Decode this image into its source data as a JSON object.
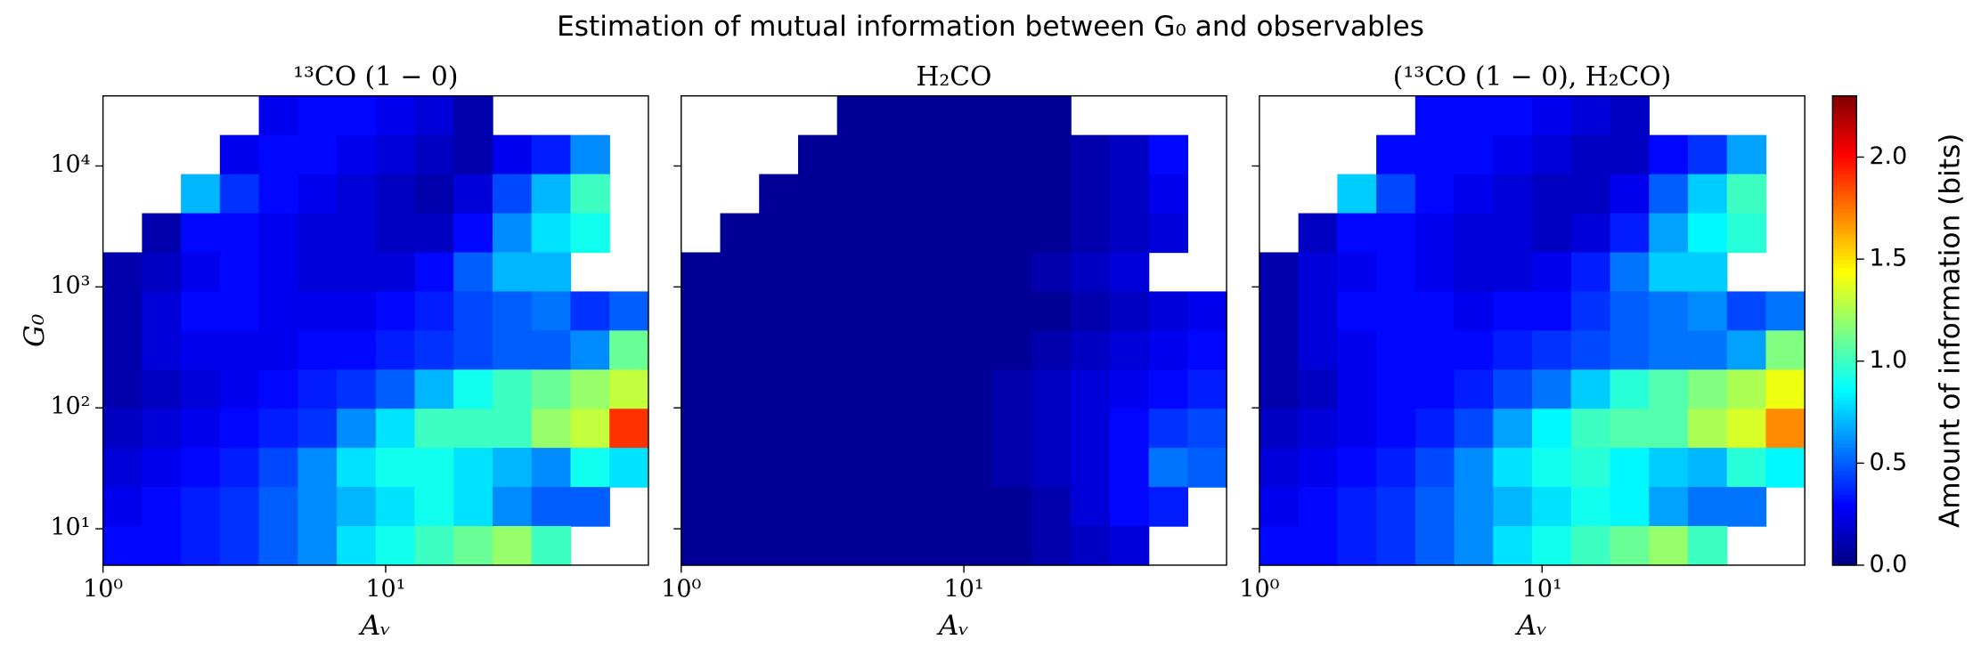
{
  "title": "Estimation of mutual information between G₀ and observables",
  "colorbar": {
    "label": "Amount of information (bits)",
    "colormap": "jet",
    "clim": [
      0,
      2.3
    ],
    "ticks": [
      {
        "value": 0,
        "label": "0.0"
      },
      {
        "value": 0.5,
        "label": "0.5"
      },
      {
        "value": 1,
        "label": "1.0"
      },
      {
        "value": 1.5,
        "label": "1.5"
      },
      {
        "value": 2,
        "label": "2.0"
      }
    ]
  },
  "chart_data": [
    {
      "type": "heatmap",
      "title": "¹³CO (1 − 0)",
      "xlabel": "Aᵥ",
      "ylabel": "G₀",
      "log_x": true,
      "log_y": true,
      "xlim": [
        1,
        85
      ],
      "ylim": [
        5,
        38000
      ],
      "xticks": [
        {
          "value": 1,
          "label": "10⁰"
        },
        {
          "value": 10,
          "label": "10¹"
        }
      ],
      "yticks": [
        {
          "value": 10,
          "label": "10¹"
        },
        {
          "value": 100,
          "label": "10²"
        },
        {
          "value": 1000,
          "label": "10³"
        },
        {
          "value": 10000,
          "label": "10⁴"
        }
      ],
      "values": [
        [
          null,
          null,
          null,
          null,
          0.25,
          0.3,
          0.3,
          0.25,
          0.2,
          0.1,
          null,
          null,
          null,
          null
        ],
        [
          null,
          null,
          null,
          0.25,
          0.3,
          0.3,
          0.25,
          0.2,
          0.15,
          0.1,
          0.25,
          0.35,
          0.6,
          null
        ],
        [
          null,
          null,
          0.7,
          0.4,
          0.3,
          0.25,
          0.2,
          0.15,
          0.1,
          0.2,
          0.45,
          0.7,
          1.0,
          null
        ],
        [
          null,
          0.1,
          0.3,
          0.3,
          0.25,
          0.2,
          0.2,
          0.15,
          0.15,
          0.3,
          0.6,
          0.8,
          0.9,
          null
        ],
        [
          0.1,
          0.15,
          0.25,
          0.3,
          0.25,
          0.2,
          0.2,
          0.2,
          0.3,
          0.5,
          0.7,
          0.7,
          null,
          null
        ],
        [
          0.1,
          0.2,
          0.3,
          0.3,
          0.25,
          0.25,
          0.25,
          0.3,
          0.35,
          0.45,
          0.5,
          0.55,
          0.4,
          0.5
        ],
        [
          0.1,
          0.2,
          0.25,
          0.25,
          0.25,
          0.3,
          0.3,
          0.35,
          0.4,
          0.45,
          0.5,
          0.5,
          0.6,
          1.1
        ],
        [
          0.1,
          0.15,
          0.2,
          0.25,
          0.3,
          0.35,
          0.4,
          0.5,
          0.7,
          0.9,
          1.0,
          1.1,
          1.2,
          1.3
        ],
        [
          0.15,
          0.2,
          0.25,
          0.3,
          0.35,
          0.4,
          0.6,
          0.8,
          1.0,
          1.0,
          1.0,
          1.2,
          1.3,
          1.9
        ],
        [
          0.2,
          0.25,
          0.3,
          0.35,
          0.45,
          0.6,
          0.8,
          0.9,
          0.9,
          0.8,
          0.7,
          0.6,
          0.9,
          0.8
        ],
        [
          0.25,
          0.3,
          0.35,
          0.4,
          0.5,
          0.6,
          0.7,
          0.8,
          0.9,
          0.8,
          0.6,
          0.5,
          0.5,
          null
        ],
        [
          0.3,
          0.3,
          0.35,
          0.4,
          0.5,
          0.6,
          0.8,
          0.9,
          1.0,
          1.1,
          1.2,
          1.0,
          null,
          null
        ]
      ]
    },
    {
      "type": "heatmap",
      "title": "H₂CO",
      "xlabel": "Aᵥ",
      "log_x": true,
      "log_y": true,
      "sharey": true,
      "xlim": [
        1,
        85
      ],
      "xticks": [
        {
          "value": 1,
          "label": "10⁰"
        },
        {
          "value": 10,
          "label": "10¹"
        }
      ],
      "values": [
        [
          null,
          null,
          null,
          null,
          0.05,
          0.05,
          0.05,
          0.05,
          0.05,
          0.05,
          null,
          null,
          null,
          null
        ],
        [
          null,
          null,
          null,
          0.05,
          0.05,
          0.05,
          0.05,
          0.05,
          0.05,
          0.05,
          0.1,
          0.15,
          0.3,
          null
        ],
        [
          null,
          null,
          0.05,
          0.05,
          0.05,
          0.05,
          0.05,
          0.05,
          0.05,
          0.05,
          0.1,
          0.15,
          0.25,
          null
        ],
        [
          null,
          0.05,
          0.05,
          0.05,
          0.05,
          0.05,
          0.05,
          0.05,
          0.05,
          0.05,
          0.1,
          0.15,
          0.2,
          null
        ],
        [
          0.05,
          0.05,
          0.05,
          0.05,
          0.05,
          0.05,
          0.05,
          0.05,
          0.05,
          0.1,
          0.15,
          0.2,
          null,
          null
        ],
        [
          0.05,
          0.05,
          0.05,
          0.05,
          0.05,
          0.05,
          0.05,
          0.05,
          0.05,
          0.05,
          0.1,
          0.15,
          0.2,
          0.25
        ],
        [
          0.05,
          0.05,
          0.05,
          0.05,
          0.05,
          0.05,
          0.05,
          0.05,
          0.05,
          0.1,
          0.15,
          0.2,
          0.25,
          0.3
        ],
        [
          0.05,
          0.05,
          0.05,
          0.05,
          0.05,
          0.05,
          0.05,
          0.05,
          0.1,
          0.15,
          0.2,
          0.25,
          0.3,
          0.35
        ],
        [
          0.05,
          0.05,
          0.05,
          0.05,
          0.05,
          0.05,
          0.05,
          0.05,
          0.1,
          0.15,
          0.2,
          0.3,
          0.4,
          0.45
        ],
        [
          0.05,
          0.05,
          0.05,
          0.05,
          0.05,
          0.05,
          0.05,
          0.05,
          0.1,
          0.15,
          0.2,
          0.3,
          0.55,
          0.5
        ],
        [
          0.05,
          0.05,
          0.05,
          0.05,
          0.05,
          0.05,
          0.05,
          0.05,
          0.05,
          0.1,
          0.2,
          0.3,
          0.35,
          null
        ],
        [
          0.05,
          0.05,
          0.05,
          0.05,
          0.05,
          0.05,
          0.05,
          0.05,
          0.05,
          0.1,
          0.15,
          0.2,
          null,
          null
        ]
      ]
    },
    {
      "type": "heatmap",
      "title": "(¹³CO (1 − 0), H₂CO)",
      "xlabel": "Aᵥ",
      "log_x": true,
      "log_y": true,
      "sharey": true,
      "xlim": [
        1,
        85
      ],
      "xticks": [
        {
          "value": 1,
          "label": "10⁰"
        },
        {
          "value": 10,
          "label": "10¹"
        }
      ],
      "values": [
        [
          null,
          null,
          null,
          null,
          0.3,
          0.3,
          0.3,
          0.25,
          0.2,
          0.15,
          null,
          null,
          null,
          null
        ],
        [
          null,
          null,
          null,
          0.3,
          0.3,
          0.3,
          0.25,
          0.2,
          0.15,
          0.15,
          0.3,
          0.4,
          0.65,
          null
        ],
        [
          null,
          null,
          0.75,
          0.45,
          0.3,
          0.25,
          0.2,
          0.15,
          0.15,
          0.25,
          0.5,
          0.75,
          1.0,
          null
        ],
        [
          null,
          0.15,
          0.3,
          0.3,
          0.25,
          0.2,
          0.2,
          0.15,
          0.2,
          0.35,
          0.65,
          0.85,
          0.95,
          null
        ],
        [
          0.1,
          0.2,
          0.25,
          0.3,
          0.25,
          0.2,
          0.2,
          0.25,
          0.35,
          0.55,
          0.75,
          0.75,
          null,
          null
        ],
        [
          0.1,
          0.2,
          0.3,
          0.3,
          0.3,
          0.25,
          0.3,
          0.3,
          0.4,
          0.5,
          0.55,
          0.6,
          0.45,
          0.55
        ],
        [
          0.1,
          0.2,
          0.25,
          0.3,
          0.3,
          0.3,
          0.35,
          0.4,
          0.45,
          0.5,
          0.55,
          0.55,
          0.65,
          1.15
        ],
        [
          0.1,
          0.15,
          0.25,
          0.3,
          0.3,
          0.35,
          0.45,
          0.55,
          0.75,
          0.95,
          1.05,
          1.15,
          1.25,
          1.4
        ],
        [
          0.15,
          0.2,
          0.25,
          0.3,
          0.35,
          0.45,
          0.65,
          0.85,
          1.0,
          1.05,
          1.05,
          1.25,
          1.35,
          1.7
        ],
        [
          0.2,
          0.25,
          0.3,
          0.35,
          0.45,
          0.6,
          0.8,
          0.9,
          0.95,
          0.85,
          0.75,
          0.7,
          0.95,
          0.85
        ],
        [
          0.25,
          0.3,
          0.35,
          0.4,
          0.5,
          0.6,
          0.7,
          0.8,
          0.9,
          0.85,
          0.65,
          0.55,
          0.55,
          null
        ],
        [
          0.3,
          0.3,
          0.35,
          0.4,
          0.5,
          0.6,
          0.8,
          0.9,
          1.0,
          1.1,
          1.2,
          1.0,
          null,
          null
        ]
      ]
    }
  ]
}
